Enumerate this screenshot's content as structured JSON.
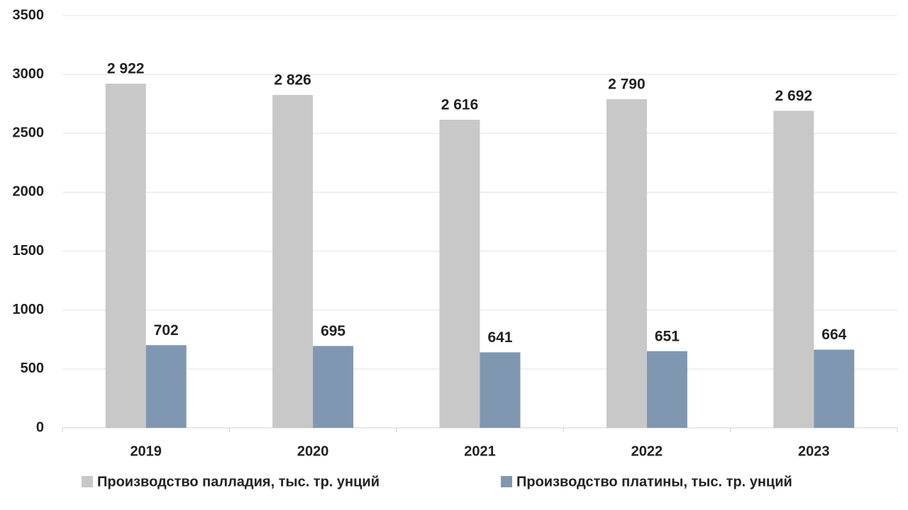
{
  "chart_data": {
    "type": "bar",
    "categories": [
      "2019",
      "2020",
      "2021",
      "2022",
      "2023"
    ],
    "series": [
      {
        "name": "Производство палладия, тыс. тр. унций",
        "color": "#c8c8c8",
        "values": [
          2922,
          2826,
          2616,
          2790,
          2692
        ],
        "value_labels": [
          "2 922",
          "2 826",
          "2 616",
          "2 790",
          "2 692"
        ]
      },
      {
        "name": "Производство платины, тыс. тр. унций",
        "color": "#8097b1",
        "values": [
          702,
          695,
          641,
          651,
          664
        ]
      }
    ],
    "ylim": [
      0,
      3500
    ],
    "yticks": [
      0,
      500,
      1000,
      1500,
      2000,
      2500,
      3000,
      3500
    ],
    "grid": true,
    "legend": "bottom"
  }
}
